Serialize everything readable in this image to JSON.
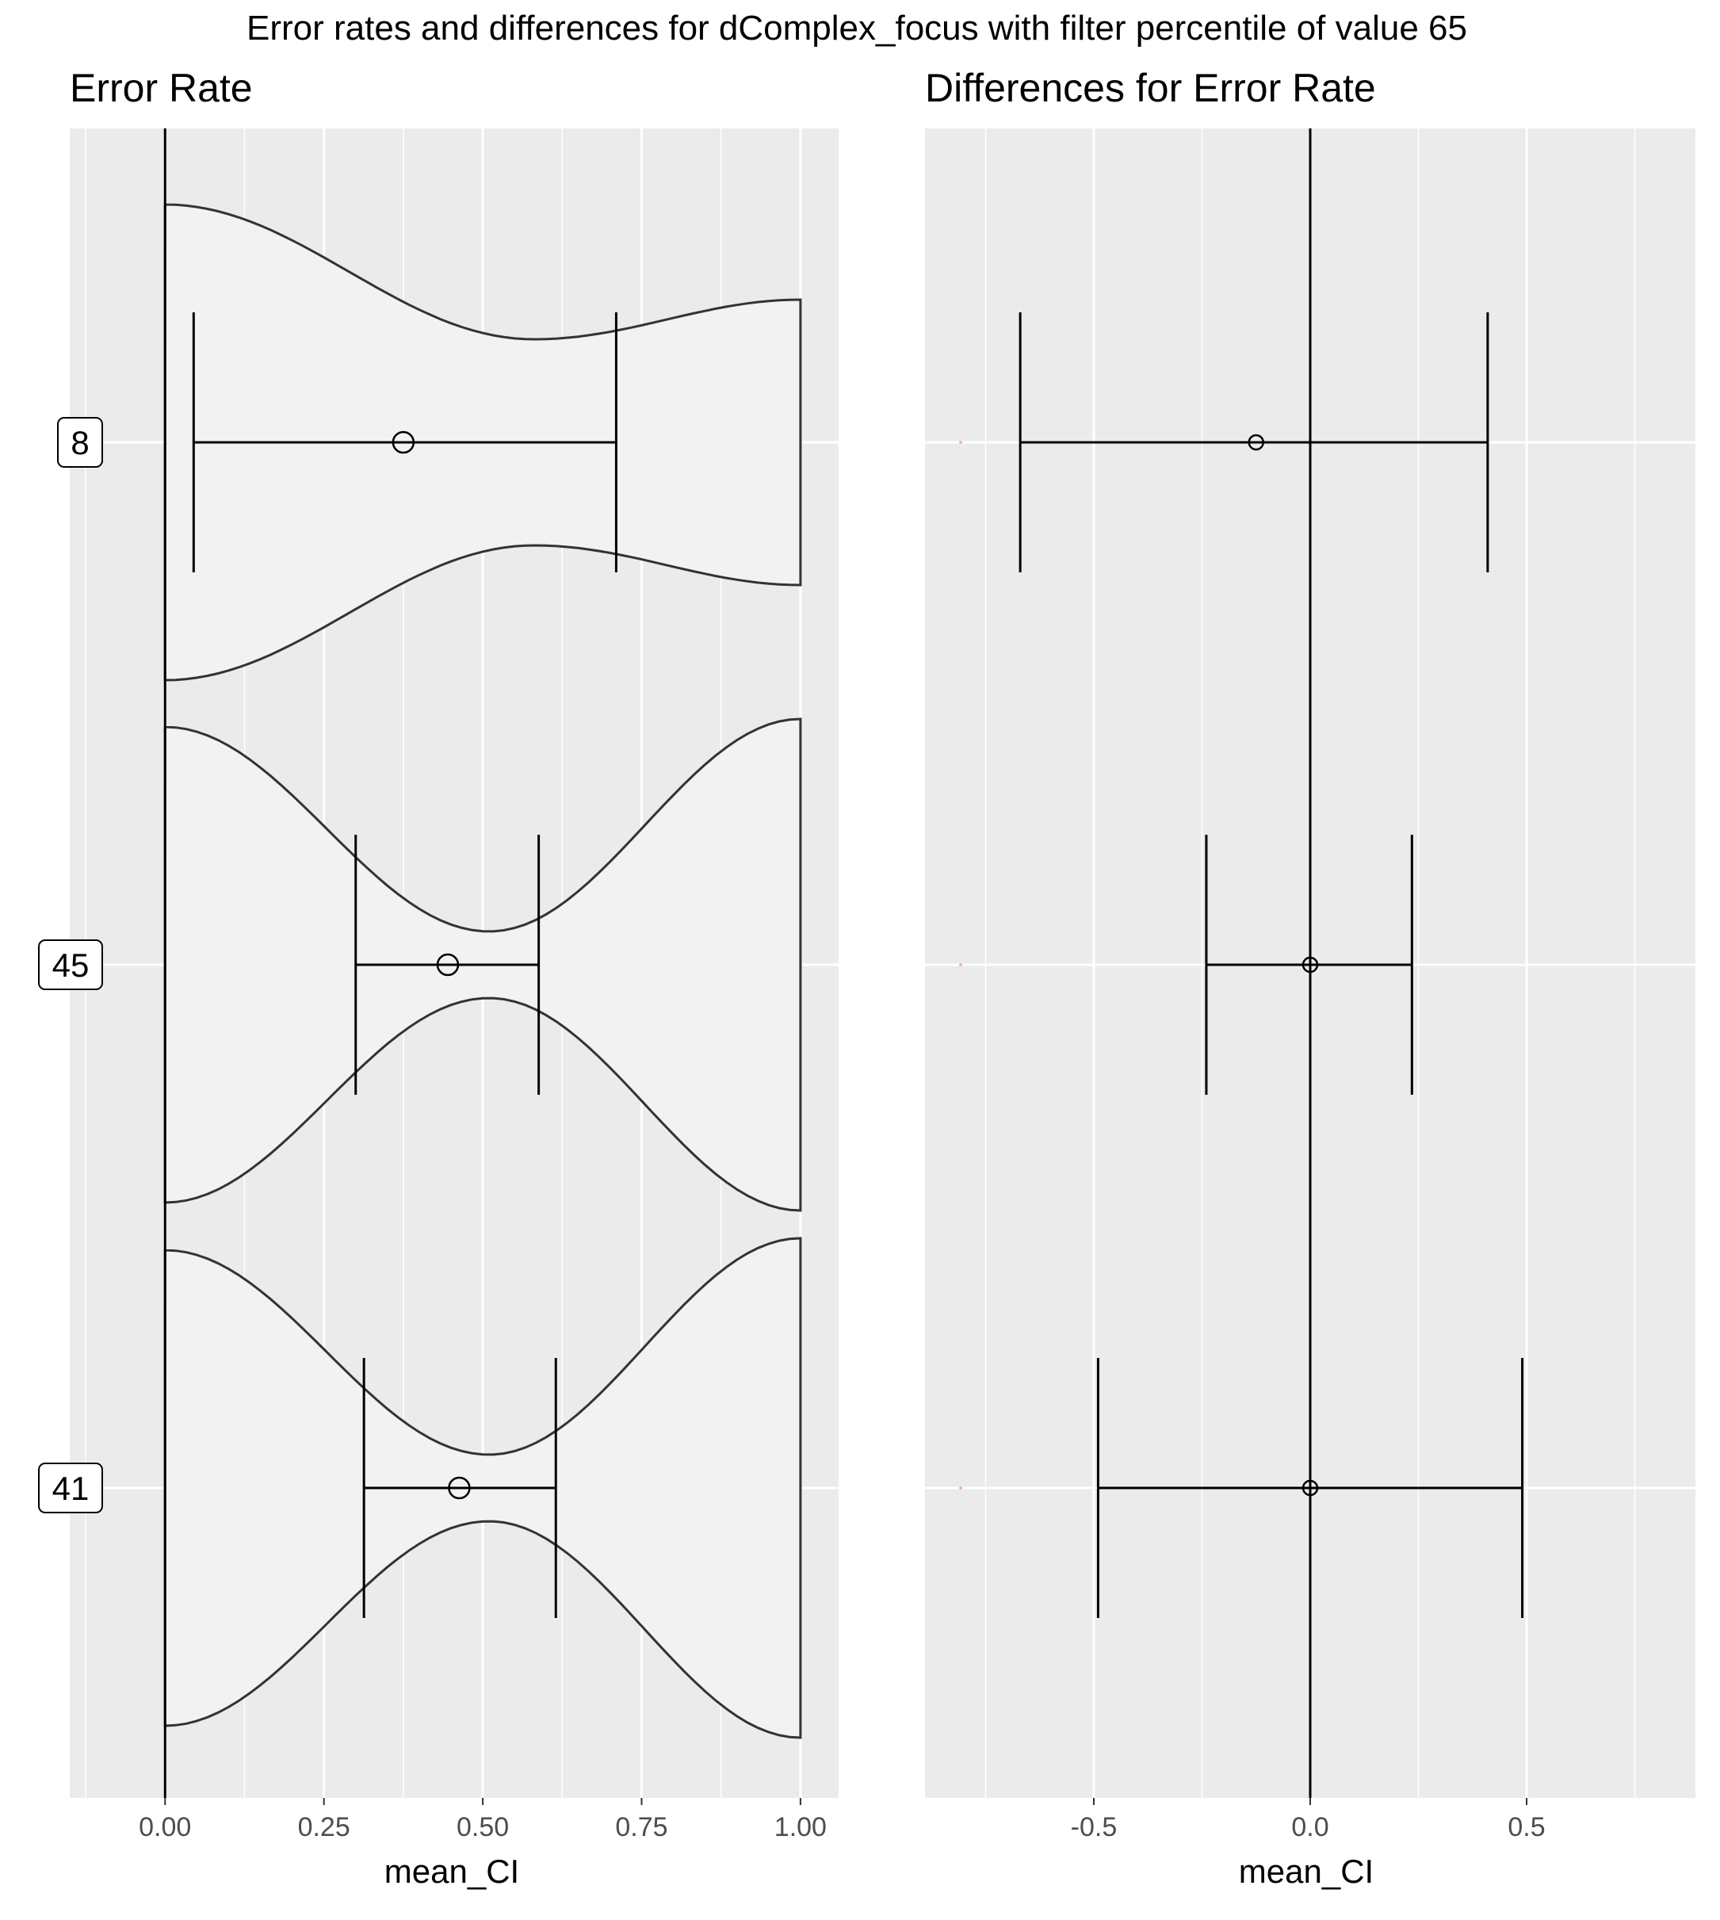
{
  "title": "Error rates and differences for dComplex_focus with filter percentile of value 65",
  "chart_data": [
    {
      "type": "violin",
      "title": "Error Rate",
      "xlabel": "mean_CI",
      "ylabel": "",
      "xlim": [
        -0.15,
        1.06
      ],
      "xticks": [
        0.0,
        0.25,
        0.5,
        0.75,
        1.0
      ],
      "xtick_labels": [
        "0.00",
        "0.25",
        "0.50",
        "0.75",
        "1.00"
      ],
      "categories": [
        "8",
        "45",
        "41"
      ],
      "series": [
        {
          "category": "8",
          "mean": 0.375,
          "ci": [
            0.045,
            0.71
          ],
          "violin_max_width": 0.5,
          "violin_center": 0.58
        },
        {
          "category": "45",
          "mean": 0.445,
          "ci": [
            0.3,
            0.588
          ],
          "violin_max_width": 0.5,
          "violin_center": 0.51
        },
        {
          "category": "41",
          "mean": 0.463,
          "ci": [
            0.313,
            0.615
          ],
          "violin_max_width": 0.5,
          "violin_center": 0.51
        }
      ],
      "grid": true,
      "colors": {
        "panel": "#ebebeb",
        "violin_fill": "#f2f2f2",
        "line": "#333333"
      }
    },
    {
      "type": "errorbar",
      "title": "Differences for Error Rate",
      "xlabel": "mean_CI",
      "ylabel": "",
      "xlim": [
        -0.89,
        0.89
      ],
      "xticks": [
        -0.5,
        0.0,
        0.5
      ],
      "xtick_labels": [
        "-0.5",
        "0.0",
        "0.5"
      ],
      "categories": [
        "8",
        "45",
        "41"
      ],
      "series": [
        {
          "category": "8",
          "mean": -0.125,
          "ci": [
            -0.67,
            0.41
          ]
        },
        {
          "category": "45",
          "mean": 0.0,
          "ci": [
            -0.24,
            0.235
          ]
        },
        {
          "category": "41",
          "mean": 0.0,
          "ci": [
            -0.49,
            0.49
          ]
        }
      ],
      "reference_line": 0,
      "grid": true,
      "colors": {
        "panel": "#ebebeb",
        "line": "#000000",
        "marker": "#f4a3a3"
      }
    }
  ]
}
